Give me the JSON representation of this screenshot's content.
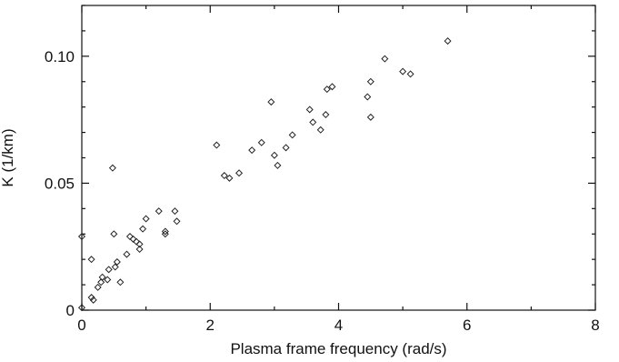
{
  "chart_data": {
    "type": "scatter",
    "title": "",
    "xlabel": "Plasma frame frequency (rad/s)",
    "ylabel": "K (1/km)",
    "xlim": [
      0,
      8
    ],
    "ylim": [
      0,
      0.12
    ],
    "xticks": [
      0,
      2,
      4,
      6,
      8
    ],
    "xtick_labels": [
      "0",
      "2",
      "4",
      "6",
      "8"
    ],
    "yticks": [
      0,
      0.05,
      0.1
    ],
    "ytick_labels": [
      "0",
      "0.05",
      "0.10"
    ],
    "grid": false,
    "marker": "diamond",
    "points": [
      {
        "x": 0.0,
        "y": 0.029
      },
      {
        "x": 0.0,
        "y": 0.001
      },
      {
        "x": 0.15,
        "y": 0.02
      },
      {
        "x": 0.15,
        "y": 0.005
      },
      {
        "x": 0.18,
        "y": 0.004
      },
      {
        "x": 0.25,
        "y": 0.009
      },
      {
        "x": 0.3,
        "y": 0.011
      },
      {
        "x": 0.32,
        "y": 0.013
      },
      {
        "x": 0.4,
        "y": 0.012
      },
      {
        "x": 0.42,
        "y": 0.016
      },
      {
        "x": 0.48,
        "y": 0.056
      },
      {
        "x": 0.5,
        "y": 0.03
      },
      {
        "x": 0.52,
        "y": 0.017
      },
      {
        "x": 0.55,
        "y": 0.019
      },
      {
        "x": 0.6,
        "y": 0.011
      },
      {
        "x": 0.7,
        "y": 0.022
      },
      {
        "x": 0.75,
        "y": 0.029
      },
      {
        "x": 0.8,
        "y": 0.028
      },
      {
        "x": 0.85,
        "y": 0.027
      },
      {
        "x": 0.9,
        "y": 0.024
      },
      {
        "x": 0.9,
        "y": 0.026
      },
      {
        "x": 0.95,
        "y": 0.032
      },
      {
        "x": 1.0,
        "y": 0.036
      },
      {
        "x": 1.2,
        "y": 0.039
      },
      {
        "x": 1.3,
        "y": 0.031
      },
      {
        "x": 1.3,
        "y": 0.03
      },
      {
        "x": 1.45,
        "y": 0.039
      },
      {
        "x": 1.48,
        "y": 0.035
      },
      {
        "x": 2.1,
        "y": 0.065
      },
      {
        "x": 2.22,
        "y": 0.053
      },
      {
        "x": 2.3,
        "y": 0.052
      },
      {
        "x": 2.45,
        "y": 0.054
      },
      {
        "x": 2.65,
        "y": 0.063
      },
      {
        "x": 2.8,
        "y": 0.066
      },
      {
        "x": 2.95,
        "y": 0.082
      },
      {
        "x": 3.0,
        "y": 0.061
      },
      {
        "x": 3.05,
        "y": 0.057
      },
      {
        "x": 3.18,
        "y": 0.064
      },
      {
        "x": 3.28,
        "y": 0.069
      },
      {
        "x": 3.55,
        "y": 0.079
      },
      {
        "x": 3.6,
        "y": 0.074
      },
      {
        "x": 3.72,
        "y": 0.071
      },
      {
        "x": 3.8,
        "y": 0.077
      },
      {
        "x": 3.82,
        "y": 0.087
      },
      {
        "x": 3.9,
        "y": 0.088
      },
      {
        "x": 4.45,
        "y": 0.084
      },
      {
        "x": 4.5,
        "y": 0.09
      },
      {
        "x": 4.5,
        "y": 0.076
      },
      {
        "x": 4.72,
        "y": 0.099
      },
      {
        "x": 5.0,
        "y": 0.094
      },
      {
        "x": 5.12,
        "y": 0.093
      },
      {
        "x": 5.7,
        "y": 0.106
      }
    ]
  }
}
